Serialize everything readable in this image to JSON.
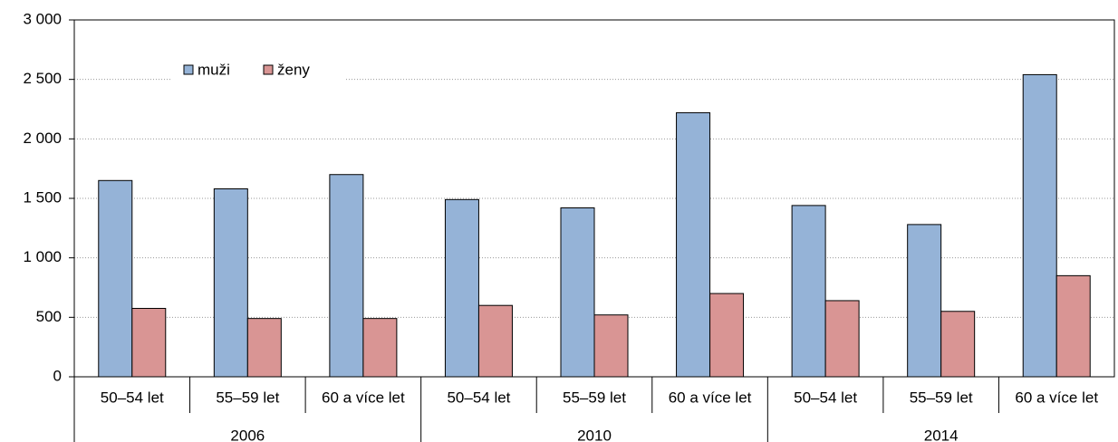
{
  "chart_data": {
    "type": "bar",
    "categories": [
      "50–54 let",
      "55–59 let",
      "60 a více let",
      "50–54 let",
      "55–59 let",
      "60 a více let",
      "50–54 let",
      "55–59 let",
      "60 a více let"
    ],
    "groups": [
      "2006",
      "2010",
      "2014"
    ],
    "series": [
      {
        "name": "muži",
        "color": "#95b3d7",
        "values": [
          1650,
          1580,
          1700,
          1490,
          1420,
          2220,
          1440,
          1280,
          2540
        ]
      },
      {
        "name": "ženy",
        "color": "#d99594",
        "values": [
          575,
          490,
          490,
          600,
          520,
          700,
          640,
          550,
          850
        ]
      }
    ],
    "ylim": [
      0,
      3000
    ],
    "yticks": [
      0,
      500,
      {
        "value": 1000,
        "label": "1 000"
      },
      {
        "value": 1500,
        "label": "1 500"
      },
      {
        "value": 2000,
        "label": "2 000"
      },
      {
        "value": 2500,
        "label": "2 500"
      },
      {
        "value": 3000,
        "label": "3 000"
      }
    ],
    "grid": true
  }
}
